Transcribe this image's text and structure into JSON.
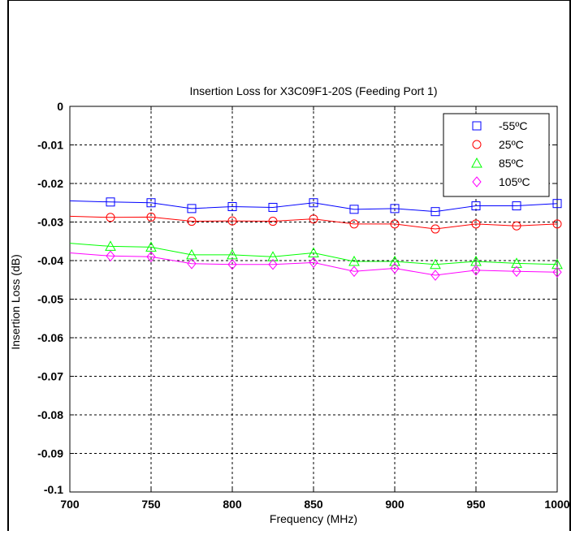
{
  "chart_data": {
    "type": "line",
    "title": "Insertion Loss for X3C09F1-20S (Feeding Port 1)",
    "xlabel": "Frequency (MHz)",
    "ylabel": "Insertion Loss (dB)",
    "xlim": [
      700,
      1000
    ],
    "ylim": [
      -0.1,
      0
    ],
    "xticks": [
      "700",
      "750",
      "800",
      "850",
      "900",
      "950",
      "1000"
    ],
    "yticks": [
      "0",
      "-0.01",
      "-0.02",
      "-0.03",
      "-0.04",
      "-0.05",
      "-0.06",
      "-0.07",
      "-0.08",
      "-0.09",
      "-0.1"
    ],
    "grid": true,
    "legend_position": "top-right",
    "x": [
      700,
      725,
      750,
      775,
      800,
      825,
      850,
      875,
      900,
      925,
      950,
      975,
      1000
    ],
    "series": [
      {
        "name": "-55ºC",
        "color": "#0000ff",
        "marker": "square",
        "values": [
          -0.0245,
          -0.0248,
          -0.025,
          -0.0265,
          -0.026,
          -0.0262,
          -0.025,
          -0.0267,
          -0.0265,
          -0.0273,
          -0.0258,
          -0.0258,
          -0.0252
        ]
      },
      {
        "name": "25ºC",
        "color": "#ff0000",
        "marker": "circle",
        "values": [
          -0.0285,
          -0.0288,
          -0.0287,
          -0.0298,
          -0.0297,
          -0.0298,
          -0.0292,
          -0.0305,
          -0.0305,
          -0.0318,
          -0.0305,
          -0.031,
          -0.0305
        ]
      },
      {
        "name": "85ºC",
        "color": "#00ff00",
        "marker": "triangle",
        "values": [
          -0.0355,
          -0.0363,
          -0.0365,
          -0.0385,
          -0.0385,
          -0.039,
          -0.038,
          -0.0402,
          -0.0402,
          -0.041,
          -0.0402,
          -0.0407,
          -0.041
        ]
      },
      {
        "name": "105ºC",
        "color": "#ff00ff",
        "marker": "diamond",
        "values": [
          -0.038,
          -0.0388,
          -0.039,
          -0.0408,
          -0.041,
          -0.041,
          -0.0405,
          -0.0428,
          -0.042,
          -0.0438,
          -0.0425,
          -0.0428,
          -0.043
        ]
      }
    ]
  }
}
